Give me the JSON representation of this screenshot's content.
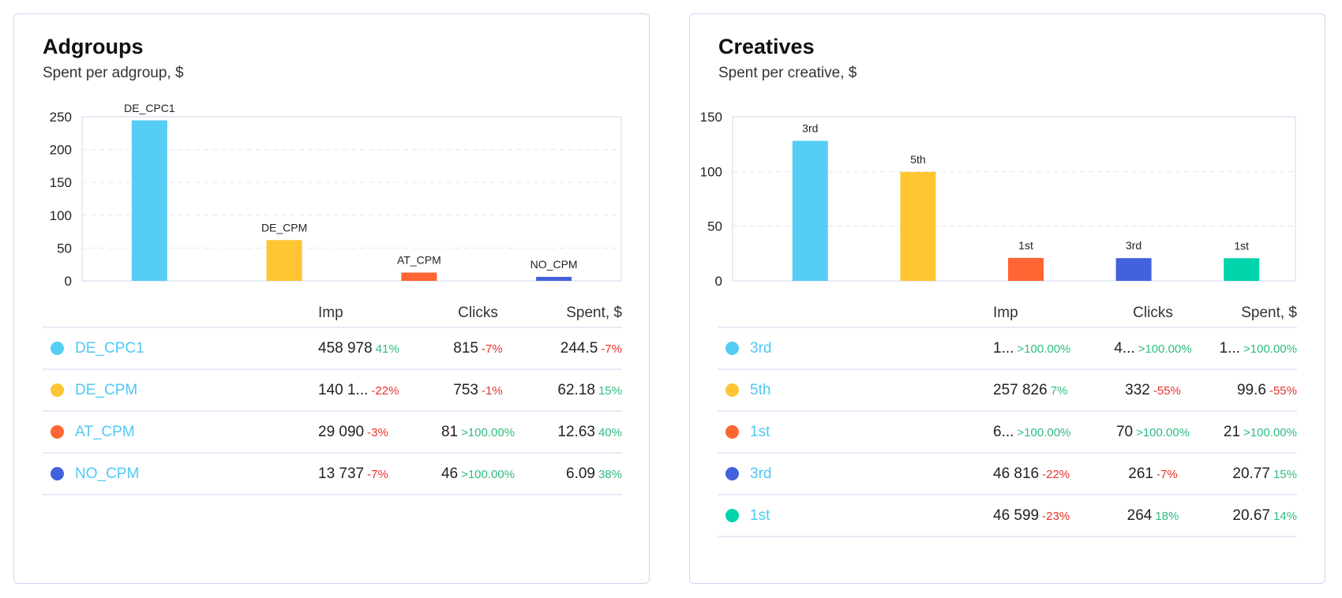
{
  "colors": {
    "cyan": "#56cdf5",
    "yellow": "#ffc533",
    "orange": "#ff6633",
    "blue": "#4361dc",
    "teal": "#00d4aa",
    "positive": "#2dbd7e",
    "negative": "#e8322d",
    "link": "#4fc8f4"
  },
  "adgroups": {
    "title": "Adgroups",
    "subtitle": "Spent per adgroup, $",
    "columns": [
      "Imp",
      "Clicks",
      "Spent, $"
    ],
    "rows": [
      {
        "name": "DE_CPC1",
        "color": "#56cdf5",
        "imp": "458 978",
        "imp_change": "41%",
        "imp_dir": "up",
        "clicks": "815",
        "clicks_change": "-7%",
        "clicks_dir": "down",
        "spent": "244.5",
        "spent_change": "-7%",
        "spent_dir": "down"
      },
      {
        "name": "DE_CPM",
        "color": "#ffc533",
        "imp": "140 1...",
        "imp_change": "-22%",
        "imp_dir": "down",
        "clicks": "753",
        "clicks_change": "-1%",
        "clicks_dir": "down",
        "spent": "62.18",
        "spent_change": "15%",
        "spent_dir": "up"
      },
      {
        "name": "AT_CPM",
        "color": "#ff6633",
        "imp": "29 090",
        "imp_change": "-3%",
        "imp_dir": "down",
        "clicks": "81",
        "clicks_change": ">100.00%",
        "clicks_dir": "up",
        "spent": "12.63",
        "spent_change": "40%",
        "spent_dir": "up"
      },
      {
        "name": "NO_CPM",
        "color": "#4361dc",
        "imp": "13 737",
        "imp_change": "-7%",
        "imp_dir": "down",
        "clicks": "46",
        "clicks_change": ">100.00%",
        "clicks_dir": "up",
        "spent": "6.09",
        "spent_change": "38%",
        "spent_dir": "up"
      }
    ]
  },
  "creatives": {
    "title": "Creatives",
    "subtitle": "Spent per creative, $",
    "columns": [
      "Imp",
      "Clicks",
      "Spent, $"
    ],
    "rows": [
      {
        "name": "3rd",
        "color": "#56cdf5",
        "imp": "1...",
        "imp_change": ">100.00%",
        "imp_dir": "up",
        "clicks": "4...",
        "clicks_change": ">100.00%",
        "clicks_dir": "up",
        "spent": "1...",
        "spent_change": ">100.00%",
        "spent_dir": "up"
      },
      {
        "name": "5th",
        "color": "#ffc533",
        "imp": "257 826",
        "imp_change": "7%",
        "imp_dir": "up",
        "clicks": "332",
        "clicks_change": "-55%",
        "clicks_dir": "down",
        "spent": "99.6",
        "spent_change": "-55%",
        "spent_dir": "down"
      },
      {
        "name": "1st",
        "color": "#ff6633",
        "imp": "6...",
        "imp_change": ">100.00%",
        "imp_dir": "up",
        "clicks": "70",
        "clicks_change": ">100.00%",
        "clicks_dir": "up",
        "spent": "21",
        "spent_change": ">100.00%",
        "spent_dir": "up"
      },
      {
        "name": "3rd",
        "color": "#4361dc",
        "imp": "46 816",
        "imp_change": "-22%",
        "imp_dir": "down",
        "clicks": "261",
        "clicks_change": "-7%",
        "clicks_dir": "down",
        "spent": "20.77",
        "spent_change": "15%",
        "spent_dir": "up"
      },
      {
        "name": "1st",
        "color": "#00d4aa",
        "imp": "46 599",
        "imp_change": "-23%",
        "imp_dir": "down",
        "clicks": "264",
        "clicks_change": "18%",
        "clicks_dir": "up",
        "spent": "20.67",
        "spent_change": "14%",
        "spent_dir": "up"
      }
    ]
  },
  "chart_data": [
    {
      "type": "bar",
      "title": "Adgroups",
      "subtitle": "Spent per adgroup, $",
      "categories": [
        "DE_CPC1",
        "DE_CPM",
        "AT_CPM",
        "NO_CPM"
      ],
      "values": [
        244.5,
        62.18,
        12.63,
        6.09
      ],
      "colors": [
        "#56cdf5",
        "#ffc533",
        "#ff6633",
        "#4361dc"
      ],
      "ylim": [
        0,
        250
      ],
      "yticks": [
        0,
        50,
        100,
        150,
        200,
        250
      ],
      "grid": true,
      "xlabel": "",
      "ylabel": ""
    },
    {
      "type": "bar",
      "title": "Creatives",
      "subtitle": "Spent per creative, $",
      "categories": [
        "3rd",
        "5th",
        "1st",
        "3rd",
        "1st"
      ],
      "values": [
        128,
        99.6,
        21,
        20.77,
        20.67
      ],
      "colors": [
        "#56cdf5",
        "#ffc533",
        "#ff6633",
        "#4361dc",
        "#00d4aa"
      ],
      "ylim": [
        0,
        150
      ],
      "yticks": [
        0,
        50,
        100,
        150
      ],
      "grid": true,
      "xlabel": "",
      "ylabel": ""
    }
  ]
}
